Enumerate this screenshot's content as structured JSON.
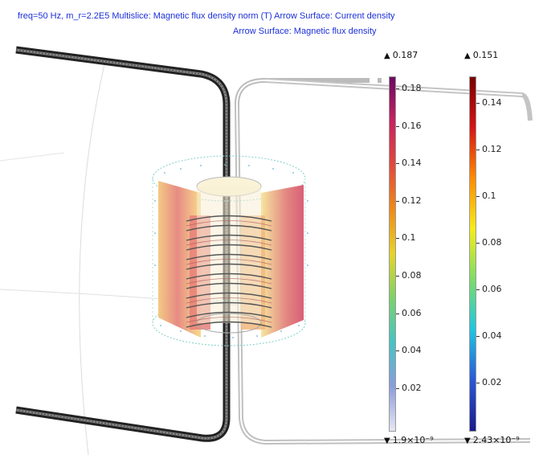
{
  "plot_title": {
    "line1": "freq=50 Hz, m_r=2.2E5 Multislice: Magnetic flux density norm (T)  Arrow Surface: Current density",
    "line2": "Arrow Surface: Magnetic flux density"
  },
  "colorbar_left": {
    "max_label": "0.187",
    "min_label": "1.9×10⁻⁹",
    "tick_labels": [
      "0.18",
      "0.16",
      "0.14",
      "0.12",
      "0.1",
      "0.08",
      "0.06",
      "0.04",
      "0.02"
    ],
    "colors": [
      "#6a0a63",
      "#c6245f",
      "#e2493a",
      "#f08a17",
      "#e7d428",
      "#7cd26a",
      "#46c3c5",
      "#8a9ddb",
      "#e7e6f3"
    ]
  },
  "colorbar_right": {
    "max_label": "0.151",
    "min_label": "2.43×10⁻⁹",
    "tick_labels": [
      "0.14",
      "0.12",
      "0.1",
      "0.08",
      "0.06",
      "0.04",
      "0.02"
    ],
    "colors": [
      "#7a0000",
      "#d41515",
      "#ff8a00",
      "#f6ec1a",
      "#7ddc6a",
      "#1ec6e2",
      "#2b57d7",
      "#1a1a8c"
    ]
  },
  "icons": {
    "max_marker": "triangle-up-icon",
    "min_marker": "triangle-down-icon"
  }
}
